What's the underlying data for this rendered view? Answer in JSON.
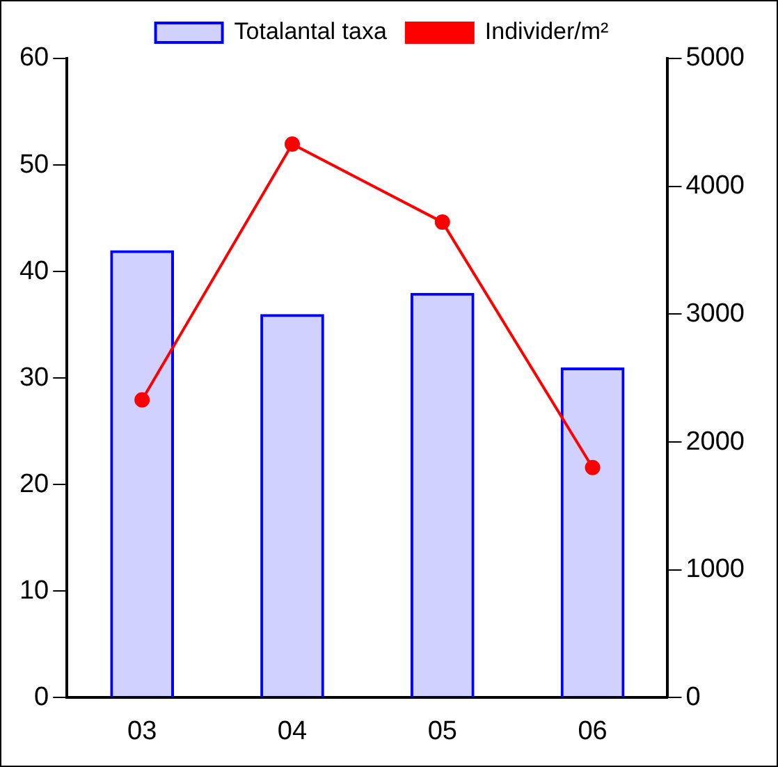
{
  "chart_data": {
    "type": "bar",
    "categories": [
      "03",
      "04",
      "05",
      "06"
    ],
    "series": [
      {
        "name": "Totalantal taxa",
        "color": "#0000ff",
        "values": [
          42,
          36,
          38,
          31
        ]
      },
      {
        "name": "Individer/m²",
        "type": "line",
        "axis": "y2",
        "color": "#ff0000",
        "values": [
          2330,
          4330,
          3720,
          1800
        ]
      }
    ],
    "ylim": [
      0,
      60
    ],
    "yticks": [
      0,
      10,
      20,
      30,
      40,
      50,
      60
    ],
    "y2lim": [
      0,
      5000
    ],
    "y2ticks": [
      0,
      1000,
      2000,
      3000,
      4000,
      5000
    ],
    "grid": false,
    "legend": "top",
    "marker": "circle",
    "line_style": "solid"
  }
}
